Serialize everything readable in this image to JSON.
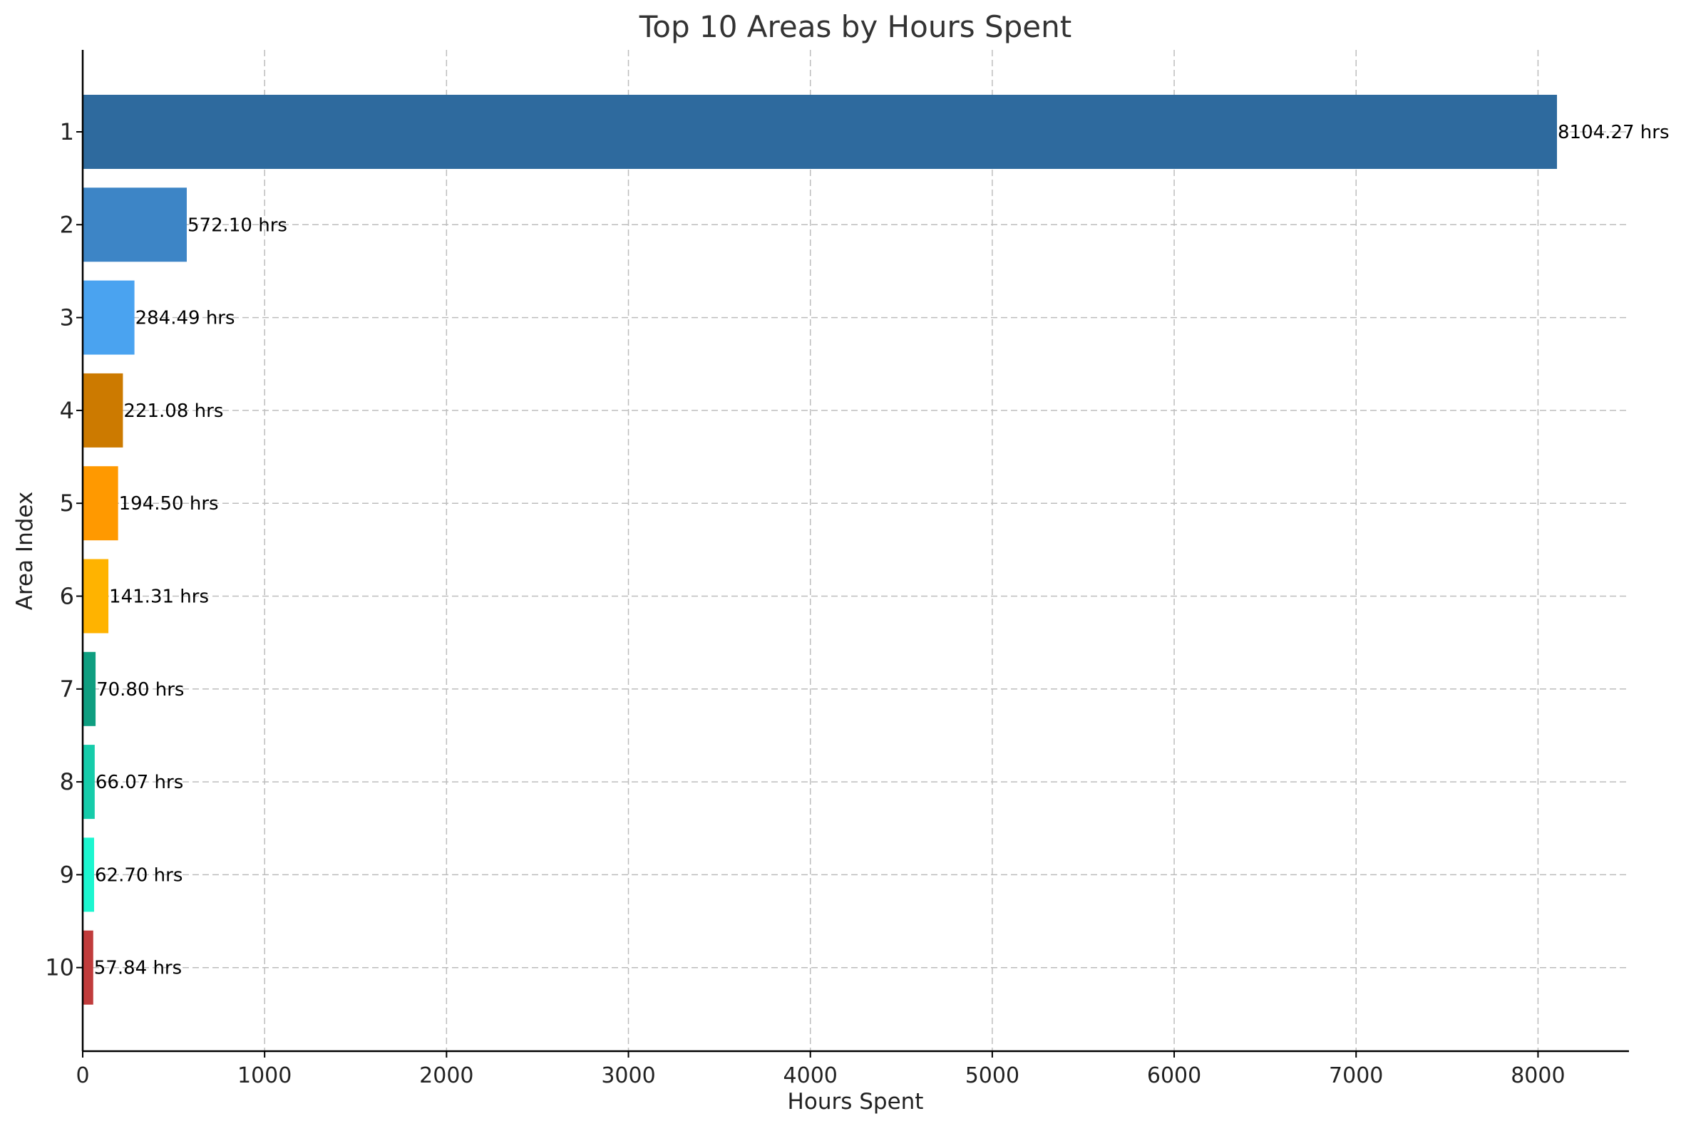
{
  "chart_data": {
    "type": "bar",
    "orientation": "horizontal",
    "title": "Top 10 Areas by Hours Spent",
    "xlabel": "Hours Spent",
    "ylabel": "Area Index",
    "xlim": [
      0,
      8500
    ],
    "xticks": [
      0,
      1000,
      2000,
      3000,
      4000,
      5000,
      6000,
      7000,
      8000
    ],
    "grid": true,
    "categories": [
      "1",
      "2",
      "3",
      "4",
      "5",
      "6",
      "7",
      "8",
      "9",
      "10"
    ],
    "values": [
      8104.27,
      572.1,
      284.49,
      221.08,
      194.5,
      141.31,
      70.8,
      66.07,
      62.7,
      57.84
    ],
    "data_labels": [
      "8104.27 hrs",
      "572.10 hrs",
      "284.49 hrs",
      "221.08 hrs",
      "194.50 hrs",
      "141.31 hrs",
      "70.80 hrs",
      "66.07 hrs",
      "62.70 hrs",
      "57.84 hrs"
    ],
    "colors": [
      "#2e6a9e",
      "#3d85c6",
      "#4aa3f0",
      "#cc7a00",
      "#ff9900",
      "#ffb300",
      "#0f9e80",
      "#16ccaa",
      "#1cf6d0",
      "#c03c3c"
    ]
  }
}
